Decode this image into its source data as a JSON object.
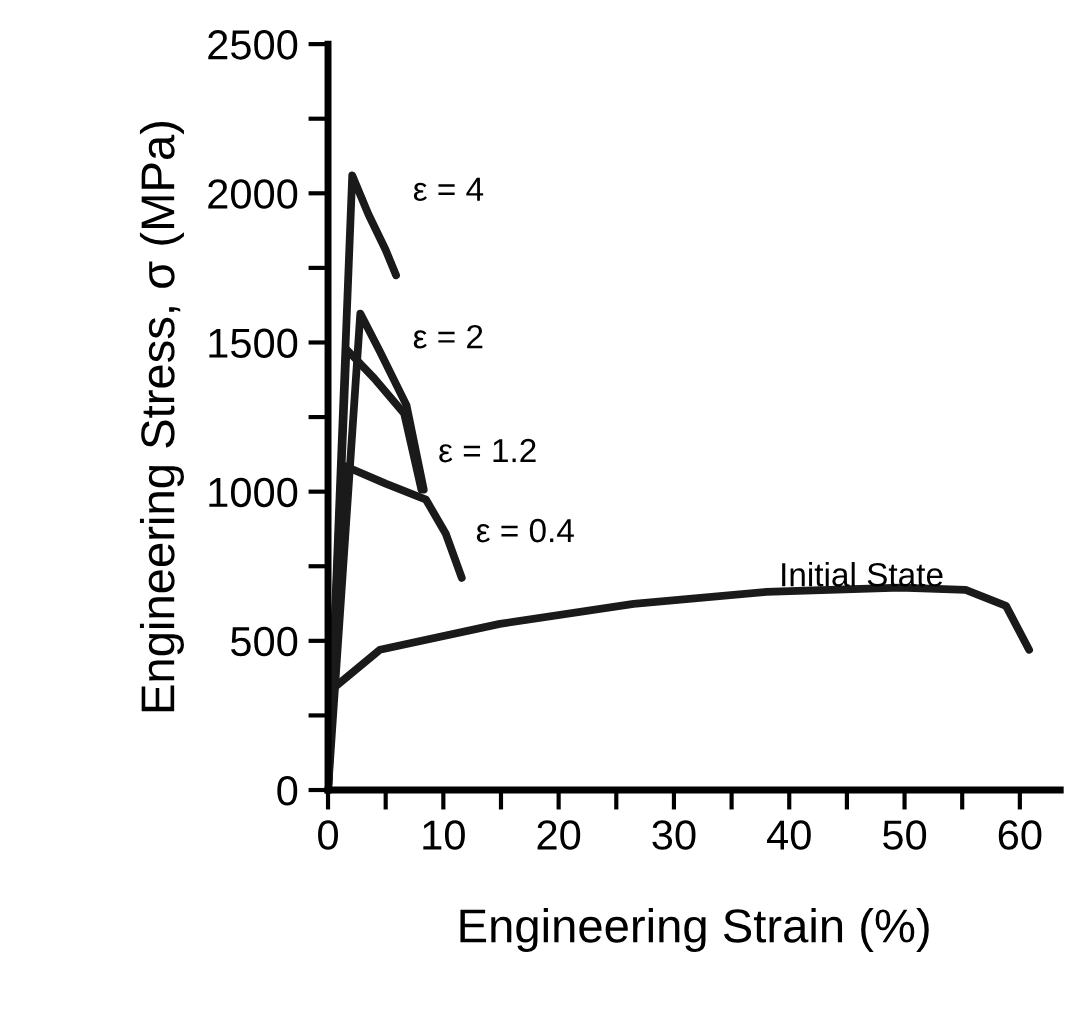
{
  "chart_data": {
    "type": "line",
    "xlabel": "Engineering Strain (%)",
    "ylabel": "Engineering Stress, σ (MPa)",
    "xlim": [
      0,
      63.5
    ],
    "ylim": [
      0,
      2500
    ],
    "xticks": [
      0,
      {
        "value": 5,
        "label": null
      },
      10,
      {
        "value": 15,
        "label": null
      },
      20,
      {
        "value": 25,
        "label": null
      },
      30,
      {
        "value": 35,
        "label": null
      },
      40,
      {
        "value": 45,
        "label": null
      },
      50,
      {
        "value": 55,
        "label": null
      },
      60
    ],
    "yticks": [
      0,
      {
        "value": 250,
        "label": null
      },
      500,
      {
        "value": 750,
        "label": null
      },
      1000,
      {
        "value": 1250,
        "label": null
      },
      1500,
      {
        "value": 1750,
        "label": null
      },
      2000,
      {
        "value": 2250,
        "label": null
      },
      2500
    ],
    "grid": false,
    "legend": false,
    "marker": "none",
    "line_style": "solid",
    "series": [
      {
        "name": "ε = 4",
        "color": "#1a1a1a",
        "x": [
          0,
          2.1,
          3.5,
          5.0,
          5.9
        ],
        "values": [
          0,
          2060,
          1930,
          1810,
          1725
        ]
      },
      {
        "name": "ε = 2",
        "color": "#1a1a1a",
        "x": [
          0,
          2.8,
          4.5,
          6.8,
          8.3
        ],
        "values": [
          0,
          1597,
          1470,
          1290,
          1007
        ]
      },
      {
        "name": "ε = 1.2",
        "color": "#1a1a1a",
        "x": [
          0,
          1.6,
          4.0,
          6.6,
          8.1
        ],
        "values": [
          0,
          1477,
          1380,
          1262,
          1007
        ]
      },
      {
        "name": "ε = 0.4",
        "color": "#1a1a1a",
        "x": [
          0,
          1.4,
          5.0,
          8.5,
          10.2,
          11.6
        ],
        "values": [
          0,
          1087,
          1027,
          973,
          860,
          711
        ]
      },
      {
        "name": "Initial State",
        "color": "#1a1a1a",
        "x": [
          0,
          0.3,
          0.7,
          4.5,
          14.9,
          26.5,
          38.0,
          49.6,
          55.3,
          58.8,
          60.8
        ],
        "values": [
          0,
          330,
          349,
          470,
          557,
          624,
          664,
          678,
          671,
          617,
          470
        ]
      }
    ]
  }
}
